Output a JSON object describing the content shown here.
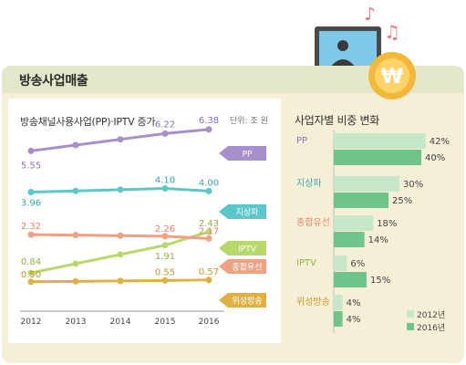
{
  "header": {
    "title": "방송사업매출"
  },
  "chart_data": [
    {
      "type": "line",
      "title": "방송채널사용사업(PP)·IPTV 증가",
      "unit": "단위: 조 원",
      "x": [
        "2012",
        "2013",
        "2014",
        "2015",
        "2016"
      ],
      "series": [
        {
          "name": "PP",
          "values": [
            5.55,
            null,
            null,
            6.22,
            6.38
          ],
          "color": "#a88fcb"
        },
        {
          "name": "지상파",
          "values": [
            3.96,
            null,
            null,
            4.1,
            4.0
          ],
          "color": "#5cc7cb"
        },
        {
          "name": "IPTV",
          "values": [
            0.84,
            null,
            null,
            1.91,
            2.43
          ],
          "color": "#b8d86b"
        },
        {
          "name": "종합유선",
          "values": [
            2.32,
            null,
            null,
            2.26,
            2.17
          ],
          "color": "#f0a183"
        },
        {
          "name": "위성방송",
          "values": [
            0.5,
            null,
            null,
            0.55,
            0.57
          ],
          "color": "#e0b040"
        }
      ]
    },
    {
      "type": "bar",
      "title": "사업자별 비중 변화",
      "categories": [
        "PP",
        "지상파",
        "종합유선",
        "IPTV",
        "위성방송"
      ],
      "series": [
        {
          "name": "2012년",
          "values": [
            42,
            30,
            18,
            6,
            4
          ],
          "color": "#c6e7c8"
        },
        {
          "name": "2016년",
          "values": [
            40,
            25,
            14,
            15,
            4
          ],
          "color": "#6fc48a"
        }
      ],
      "unit": "%"
    }
  ]
}
